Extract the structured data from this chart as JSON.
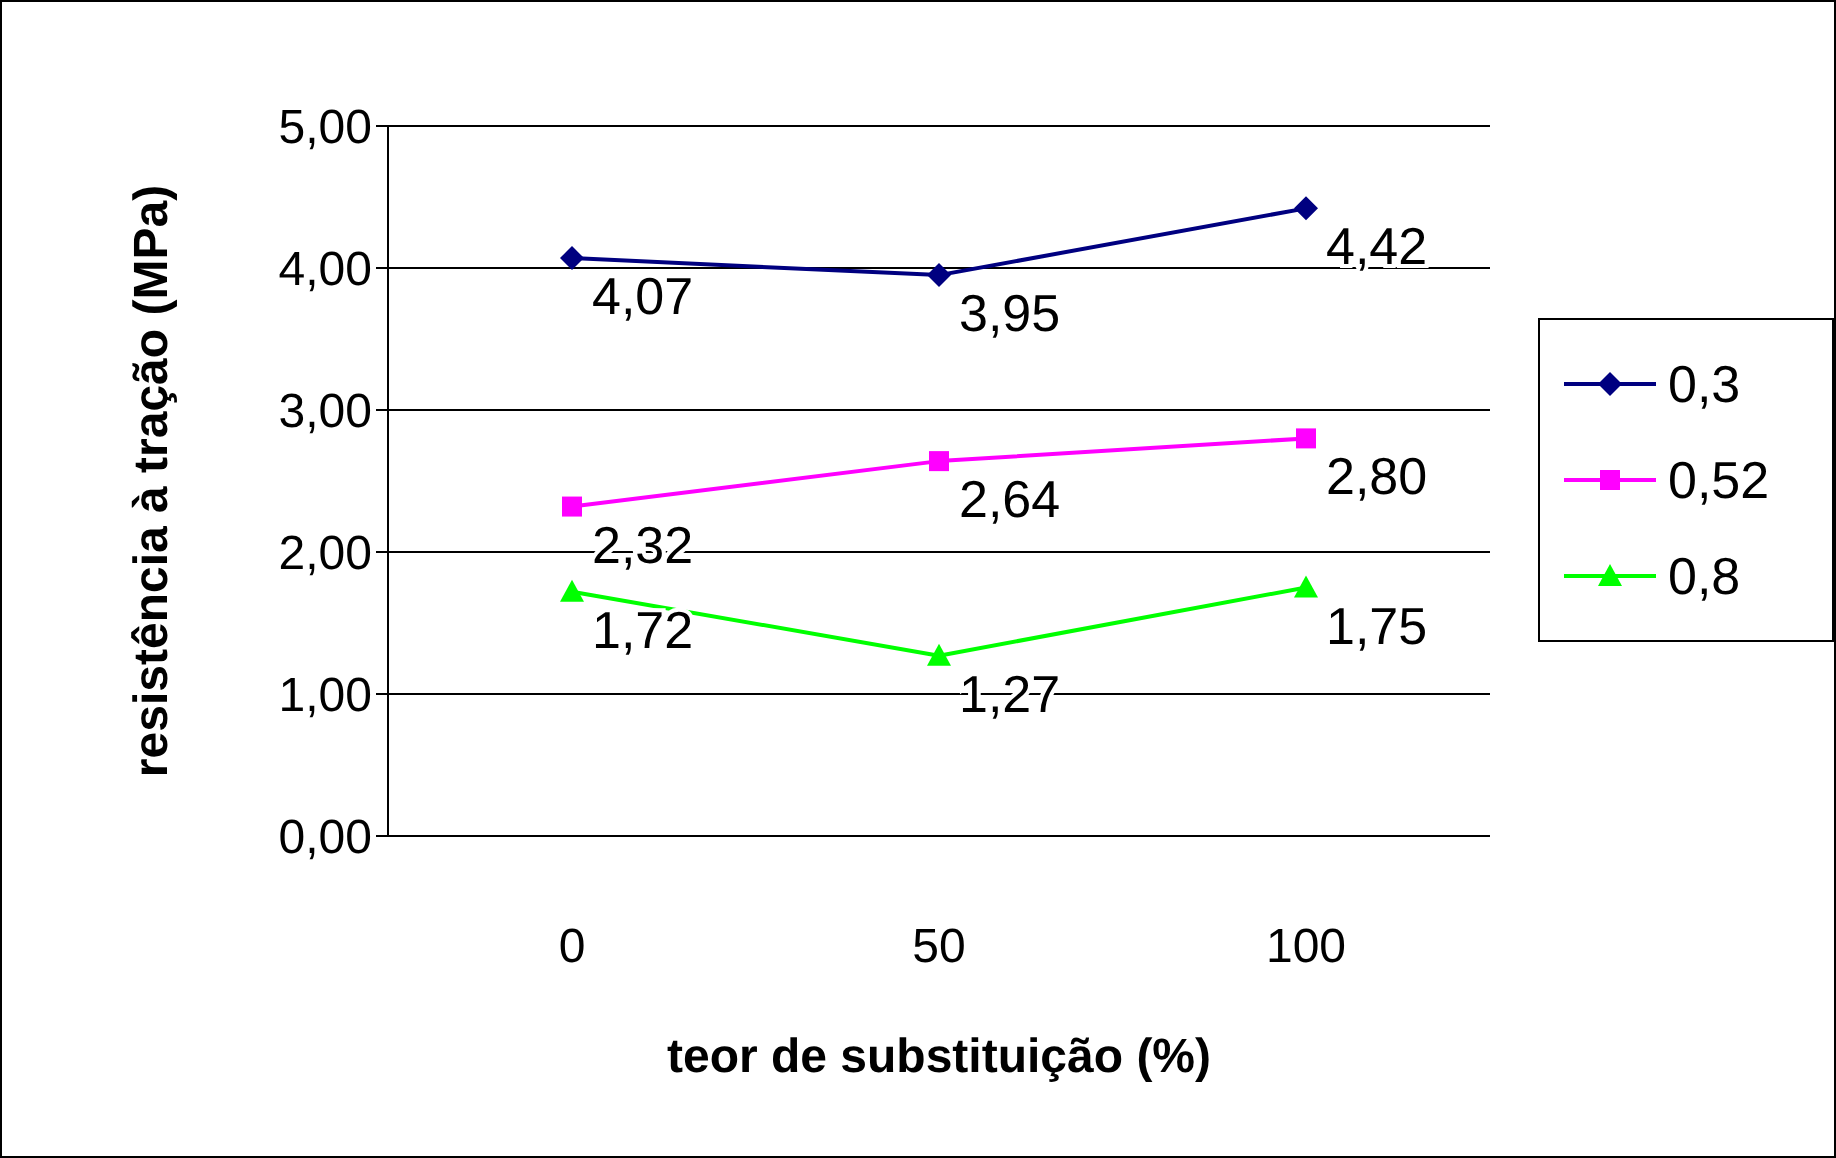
{
  "chart_data": {
    "type": "line",
    "xlabel": "teor de substituição (%)",
    "ylabel": "resistência à tração (MPa)",
    "categories": [
      "0",
      "50",
      "100"
    ],
    "series": [
      {
        "name": "0,3",
        "color": "#000080",
        "marker": "diamond",
        "values": [
          4.07,
          3.95,
          4.42
        ],
        "value_labels": [
          "4,07",
          "3,95",
          "4,42"
        ]
      },
      {
        "name": "0,52",
        "color": "#ff00ff",
        "marker": "square",
        "values": [
          2.32,
          2.64,
          2.8
        ],
        "value_labels": [
          "2,32",
          "2,64",
          "2,80"
        ]
      },
      {
        "name": "0,8",
        "color": "#00ff00",
        "marker": "triangle",
        "values": [
          1.72,
          1.27,
          1.75
        ],
        "value_labels": [
          "1,72",
          "1,27",
          "1,75"
        ]
      }
    ],
    "ylim": [
      0,
      5
    ],
    "yticks": [
      {
        "value": 0,
        "label": "0,00"
      },
      {
        "value": 1,
        "label": "1,00"
      },
      {
        "value": 2,
        "label": "2,00"
      },
      {
        "value": 3,
        "label": "3,00"
      },
      {
        "value": 4,
        "label": "4,00"
      },
      {
        "value": 5,
        "label": "5,00"
      }
    ],
    "grid": "y",
    "legend": "right"
  }
}
